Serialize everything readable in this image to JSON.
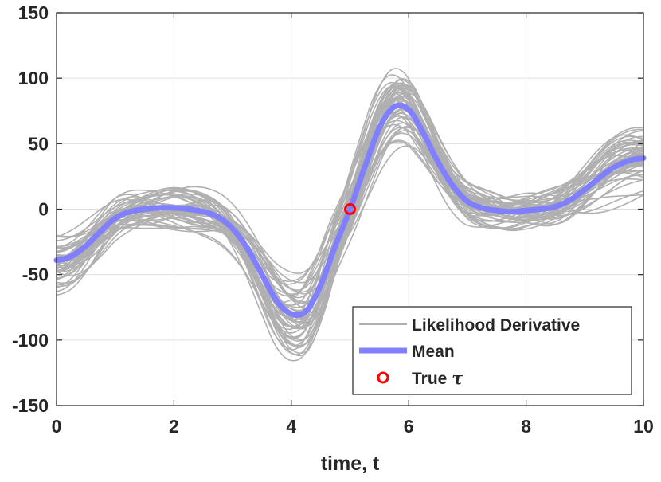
{
  "chart_data": {
    "type": "line",
    "xlabel": "time, t",
    "ylabel": "",
    "xlim": [
      0,
      10
    ],
    "ylim": [
      -150,
      150
    ],
    "xticks": [
      0,
      2,
      4,
      6,
      8,
      10
    ],
    "yticks": [
      -150,
      -100,
      -50,
      0,
      50,
      100,
      150
    ],
    "x_tick_labels": [
      "0",
      "2",
      "4",
      "6",
      "8",
      "10"
    ],
    "y_tick_labels": [
      "-150",
      "-100",
      "-50",
      "0",
      "50",
      "100",
      "150"
    ],
    "grid": true,
    "legend_position": "bottom-right",
    "mean_series": {
      "name": "Mean",
      "color": "#7f7fff",
      "x": [
        0,
        0.25,
        0.5,
        0.75,
        1.0,
        1.25,
        1.5,
        1.75,
        2.0,
        2.25,
        2.5,
        2.75,
        3.0,
        3.25,
        3.5,
        3.75,
        4.0,
        4.25,
        4.5,
        4.75,
        5.0,
        5.25,
        5.5,
        5.75,
        6.0,
        6.25,
        6.5,
        6.75,
        7.0,
        7.25,
        7.5,
        7.75,
        8.0,
        8.25,
        8.5,
        8.75,
        9.0,
        9.25,
        9.5,
        9.75,
        10.0
      ],
      "values": [
        -39,
        -36,
        -28,
        -17,
        -7,
        -2,
        0,
        1,
        1,
        0,
        -2,
        -6,
        -15,
        -30,
        -50,
        -70,
        -80,
        -78,
        -58,
        -28,
        0,
        32,
        62,
        78,
        76,
        58,
        36,
        18,
        6,
        1,
        -1,
        -2,
        -1,
        0,
        2,
        7,
        15,
        24,
        32,
        37,
        39
      ]
    },
    "samples": {
      "name": "Likelihood Derivative",
      "color": "#b0b0b0",
      "count": 50
    },
    "true_marker": {
      "name": "True τ",
      "x": 5,
      "y": 0,
      "color": "#ff0000"
    },
    "legend": [
      {
        "label": "Likelihood Derivative",
        "kind": "line",
        "color": "#b0b0b0"
      },
      {
        "label": "Mean",
        "kind": "thick-line",
        "color": "#7f7fff"
      },
      {
        "label": "True τ",
        "kind": "circle",
        "color": "#ff0000"
      }
    ]
  }
}
